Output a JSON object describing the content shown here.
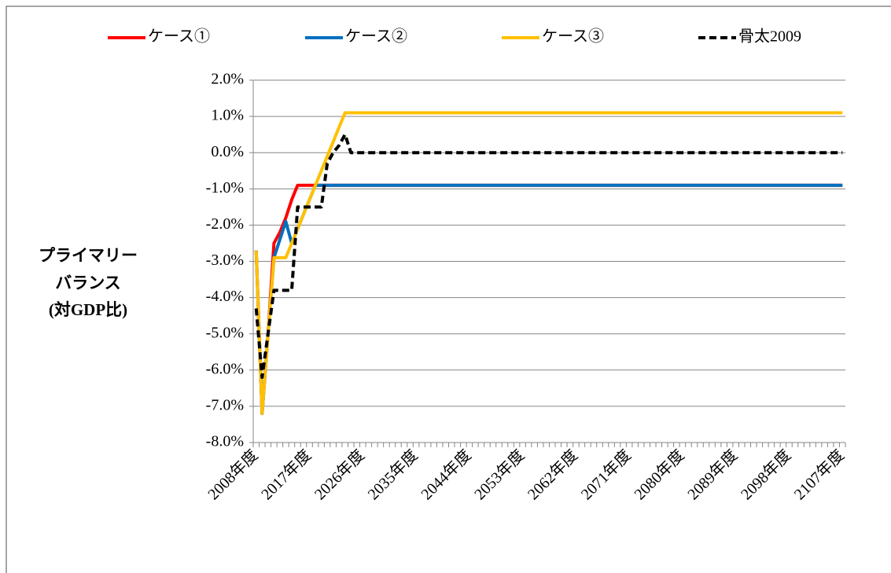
{
  "chart_data": {
    "type": "line",
    "y_label": [
      "プライマリー",
      "バランス",
      "(対GDP比)"
    ],
    "categories": [
      "2008年度",
      null,
      null,
      null,
      null,
      null,
      null,
      null,
      null,
      "2017年度",
      null,
      null,
      null,
      null,
      null,
      null,
      null,
      null,
      "2026年度",
      null,
      null,
      null,
      null,
      null,
      null,
      null,
      null,
      "2035年度",
      null,
      null,
      null,
      null,
      null,
      null,
      null,
      null,
      "2044年度",
      null,
      null,
      null,
      null,
      null,
      null,
      null,
      null,
      "2053年度",
      null,
      null,
      null,
      null,
      null,
      null,
      null,
      null,
      "2062年度",
      null,
      null,
      null,
      null,
      null,
      null,
      null,
      null,
      "2071年度",
      null,
      null,
      null,
      null,
      null,
      null,
      null,
      null,
      "2080年度",
      null,
      null,
      null,
      null,
      null,
      null,
      null,
      null,
      "2089年度",
      null,
      null,
      null,
      null,
      null,
      null,
      null,
      null,
      "2098年度",
      null,
      null,
      null,
      null,
      null,
      null,
      null,
      null,
      "2107年度"
    ],
    "series": [
      {
        "name": "ケース①",
        "color": "#ff0000",
        "dash": false,
        "values": [
          -2.7,
          -7.2,
          -5.0,
          -2.5,
          -2.2,
          -1.8,
          -1.3,
          -0.9,
          -0.9,
          -0.9,
          -0.9,
          -0.9,
          -0.9,
          -0.9,
          -0.9,
          -0.9,
          -0.9,
          -0.9,
          -0.9,
          -0.9,
          -0.9,
          -0.9,
          -0.9,
          -0.9,
          -0.9,
          -0.9,
          -0.9,
          -0.9,
          -0.9,
          -0.9,
          -0.9,
          -0.9,
          -0.9,
          -0.9,
          -0.9,
          -0.9,
          -0.9,
          -0.9,
          -0.9,
          -0.9,
          -0.9,
          -0.9,
          -0.9,
          -0.9,
          -0.9,
          -0.9,
          -0.9,
          -0.9,
          -0.9,
          -0.9,
          -0.9,
          -0.9,
          -0.9,
          -0.9,
          -0.9,
          -0.9,
          -0.9,
          -0.9,
          -0.9,
          -0.9,
          -0.9,
          -0.9,
          -0.9,
          -0.9,
          -0.9,
          -0.9,
          -0.9,
          -0.9,
          -0.9,
          -0.9,
          -0.9,
          -0.9,
          -0.9,
          -0.9,
          -0.9,
          -0.9,
          -0.9,
          -0.9,
          -0.9,
          -0.9,
          -0.9,
          -0.9,
          -0.9,
          -0.9,
          -0.9,
          -0.9,
          -0.9,
          -0.9,
          -0.9,
          -0.9,
          -0.9,
          -0.9,
          -0.9,
          -0.9,
          -0.9,
          -0.9,
          -0.9,
          -0.9,
          -0.9,
          -0.9
        ]
      },
      {
        "name": "ケース②",
        "color": "#0070c0",
        "dash": false,
        "values": [
          -2.7,
          -7.2,
          -5.0,
          -2.9,
          -2.4,
          -1.9,
          -2.5,
          -2.1,
          -1.7,
          -1.3,
          -0.9,
          -0.9,
          -0.9,
          -0.9,
          -0.9,
          -0.9,
          -0.9,
          -0.9,
          -0.9,
          -0.9,
          -0.9,
          -0.9,
          -0.9,
          -0.9,
          -0.9,
          -0.9,
          -0.9,
          -0.9,
          -0.9,
          -0.9,
          -0.9,
          -0.9,
          -0.9,
          -0.9,
          -0.9,
          -0.9,
          -0.9,
          -0.9,
          -0.9,
          -0.9,
          -0.9,
          -0.9,
          -0.9,
          -0.9,
          -0.9,
          -0.9,
          -0.9,
          -0.9,
          -0.9,
          -0.9,
          -0.9,
          -0.9,
          -0.9,
          -0.9,
          -0.9,
          -0.9,
          -0.9,
          -0.9,
          -0.9,
          -0.9,
          -0.9,
          -0.9,
          -0.9,
          -0.9,
          -0.9,
          -0.9,
          -0.9,
          -0.9,
          -0.9,
          -0.9,
          -0.9,
          -0.9,
          -0.9,
          -0.9,
          -0.9,
          -0.9,
          -0.9,
          -0.9,
          -0.9,
          -0.9,
          -0.9,
          -0.9,
          -0.9,
          -0.9,
          -0.9,
          -0.9,
          -0.9,
          -0.9,
          -0.9,
          -0.9,
          -0.9,
          -0.9,
          -0.9,
          -0.9,
          -0.9,
          -0.9,
          -0.9,
          -0.9,
          -0.9,
          -0.9
        ]
      },
      {
        "name": "ケース③",
        "color": "#ffc000",
        "dash": false,
        "values": [
          -2.7,
          -7.2,
          -5.0,
          -2.9,
          -2.9,
          -2.9,
          -2.5,
          -2.1,
          -1.7,
          -1.3,
          -0.9,
          -0.5,
          -0.1,
          0.3,
          0.7,
          1.1,
          1.1,
          1.1,
          1.1,
          1.1,
          1.1,
          1.1,
          1.1,
          1.1,
          1.1,
          1.1,
          1.1,
          1.1,
          1.1,
          1.1,
          1.1,
          1.1,
          1.1,
          1.1,
          1.1,
          1.1,
          1.1,
          1.1,
          1.1,
          1.1,
          1.1,
          1.1,
          1.1,
          1.1,
          1.1,
          1.1,
          1.1,
          1.1,
          1.1,
          1.1,
          1.1,
          1.1,
          1.1,
          1.1,
          1.1,
          1.1,
          1.1,
          1.1,
          1.1,
          1.1,
          1.1,
          1.1,
          1.1,
          1.1,
          1.1,
          1.1,
          1.1,
          1.1,
          1.1,
          1.1,
          1.1,
          1.1,
          1.1,
          1.1,
          1.1,
          1.1,
          1.1,
          1.1,
          1.1,
          1.1,
          1.1,
          1.1,
          1.1,
          1.1,
          1.1,
          1.1,
          1.1,
          1.1,
          1.1,
          1.1,
          1.1,
          1.1,
          1.1,
          1.1,
          1.1,
          1.1,
          1.1,
          1.1,
          1.1,
          1.1
        ]
      },
      {
        "name": "骨太2009",
        "color": "#000000",
        "dash": true,
        "values": [
          -4.3,
          -6.2,
          -5.0,
          -3.8,
          -3.8,
          -3.8,
          -3.8,
          -1.5,
          -1.5,
          -1.5,
          -1.5,
          -1.5,
          -0.3,
          0.0,
          0.2,
          0.5,
          0,
          0,
          0,
          0,
          0,
          0,
          0,
          0,
          0,
          0,
          0,
          0,
          0,
          0,
          0,
          0,
          0,
          0,
          0,
          0,
          0,
          0,
          0,
          0,
          0,
          0,
          0,
          0,
          0,
          0,
          0,
          0,
          0,
          0,
          0,
          0,
          0,
          0,
          0,
          0,
          0,
          0,
          0,
          0,
          0,
          0,
          0,
          0,
          0,
          0,
          0,
          0,
          0,
          0,
          0,
          0,
          0,
          0,
          0,
          0,
          0,
          0,
          0,
          0,
          0,
          0,
          0,
          0,
          0,
          0,
          0,
          0,
          0,
          0,
          0,
          0,
          0,
          0,
          0,
          0,
          0,
          0,
          0,
          0
        ]
      }
    ],
    "ylim": [
      -8,
      2
    ],
    "yticks": [
      {
        "value": -8,
        "label": "-8.0%"
      },
      {
        "value": -7,
        "label": "-7.0%"
      },
      {
        "value": -6,
        "label": "-6.0%"
      },
      {
        "value": -5,
        "label": "-5.0%"
      },
      {
        "value": -4,
        "label": "-4.0%"
      },
      {
        "value": -3,
        "label": "-3.0%"
      },
      {
        "value": -2,
        "label": "-2.0%"
      },
      {
        "value": -1,
        "label": "-1.0%"
      },
      {
        "value": 0,
        "label": "0.0%"
      },
      {
        "value": 1,
        "label": "1.0%"
      },
      {
        "value": 2,
        "label": "2.0%"
      }
    ],
    "grid": true,
    "legend": "top"
  }
}
